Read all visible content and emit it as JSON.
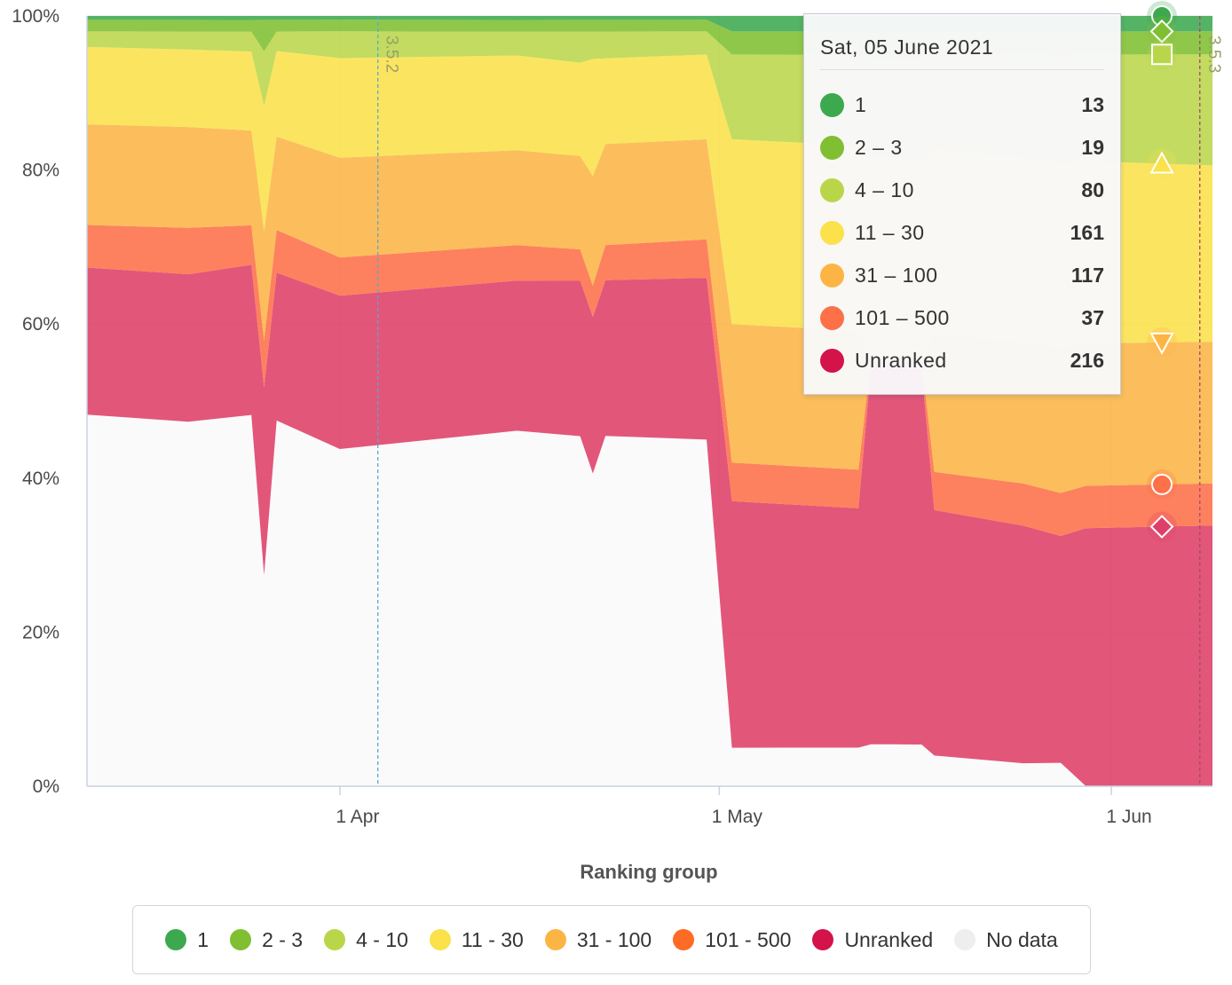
{
  "chart_data": {
    "type": "area",
    "stacking": "percent",
    "x_axis": {
      "type": "datetime",
      "title": "Ranking group",
      "range": [
        "2021-03-12",
        "2021-06-09"
      ],
      "tick_labels": [
        {
          "date": "2021-04-01",
          "label": "1 Apr"
        },
        {
          "date": "2021-05-01",
          "label": "1 May"
        },
        {
          "date": "2021-06-01",
          "label": "1 Jun"
        }
      ],
      "plot_lines": [
        {
          "date": "2021-04-04",
          "label": "3.5.2",
          "color": "#5aa9cf"
        },
        {
          "date": "2021-06-08",
          "label": "3.5.3",
          "color": "#a8476f"
        }
      ]
    },
    "y_axis": {
      "range": [
        0,
        100
      ],
      "tick_labels": [
        "0%",
        "20%",
        "40%",
        "60%",
        "80%",
        "100%"
      ]
    },
    "grid": true,
    "legend": {
      "placement": "bottom-center"
    },
    "series": [
      {
        "name": "1",
        "color": "#3ca94e",
        "marker": "circle",
        "points": [
          [
            "2021-03-12",
            0.5
          ],
          [
            "2021-04-01",
            0.5
          ],
          [
            "2021-04-30",
            0.5
          ],
          [
            "2021-05-02",
            2.0
          ],
          [
            "2021-06-09",
            2.0
          ]
        ]
      },
      {
        "name": "2 - 3",
        "color": "#7fbf31",
        "marker": "diamond",
        "points": [
          [
            "2021-03-12",
            1.5
          ],
          [
            "2021-03-25",
            1.5
          ],
          [
            "2021-03-26",
            4
          ],
          [
            "2021-03-27",
            1.5
          ],
          [
            "2021-04-20",
            1.5
          ],
          [
            "2021-04-30",
            1.5
          ],
          [
            "2021-05-02",
            3.0
          ],
          [
            "2021-06-09",
            3.0
          ]
        ]
      },
      {
        "name": "4 - 10",
        "color": "#b9d64a",
        "marker": "square",
        "points": [
          [
            "2021-03-12",
            2.0
          ],
          [
            "2021-03-25",
            2.5
          ],
          [
            "2021-03-26",
            7
          ],
          [
            "2021-03-27",
            2.5
          ],
          [
            "2021-04-01",
            3.5
          ],
          [
            "2021-04-15",
            3.0
          ],
          [
            "2021-04-20",
            4
          ],
          [
            "2021-04-21",
            3.5
          ],
          [
            "2021-04-30",
            3.0
          ],
          [
            "2021-05-02",
            11
          ],
          [
            "2021-05-15",
            12
          ],
          [
            "2021-05-25",
            13.5
          ],
          [
            "2021-06-09",
            14.5
          ]
        ]
      },
      {
        "name": "11 - 30",
        "color": "#fbe14a",
        "marker": "triangle",
        "points": [
          [
            "2021-03-12",
            10
          ],
          [
            "2021-03-20",
            10
          ],
          [
            "2021-03-25",
            10
          ],
          [
            "2021-03-26",
            16
          ],
          [
            "2021-03-27",
            11
          ],
          [
            "2021-04-01",
            13
          ],
          [
            "2021-04-15",
            12
          ],
          [
            "2021-04-20",
            12
          ],
          [
            "2021-04-21",
            15
          ],
          [
            "2021-04-22",
            11
          ],
          [
            "2021-04-30",
            11
          ],
          [
            "2021-05-02",
            24
          ],
          [
            "2021-05-15",
            24
          ],
          [
            "2021-05-25",
            24
          ],
          [
            "2021-06-09",
            23
          ]
        ]
      },
      {
        "name": "31 - 100",
        "color": "#fcb545",
        "marker": "triangle-down",
        "points": [
          [
            "2021-03-12",
            13
          ],
          [
            "2021-03-20",
            13
          ],
          [
            "2021-03-25",
            12
          ],
          [
            "2021-03-26",
            14
          ],
          [
            "2021-03-27",
            12
          ],
          [
            "2021-04-01",
            13
          ],
          [
            "2021-04-15",
            12
          ],
          [
            "2021-04-20",
            12
          ],
          [
            "2021-04-21",
            14
          ],
          [
            "2021-04-22",
            13
          ],
          [
            "2021-04-30",
            13
          ],
          [
            "2021-05-02",
            18
          ],
          [
            "2021-05-12",
            18
          ],
          [
            "2021-05-13",
            0
          ],
          [
            "2021-05-17",
            0
          ],
          [
            "2021-05-18",
            18
          ],
          [
            "2021-05-25",
            18.5
          ],
          [
            "2021-06-09",
            18.5
          ]
        ]
      },
      {
        "name": "101 - 500",
        "color": "#fd7048",
        "marker": "circle",
        "points": [
          [
            "2021-03-12",
            5.5
          ],
          [
            "2021-03-20",
            6
          ],
          [
            "2021-03-25",
            5
          ],
          [
            "2021-03-26",
            6
          ],
          [
            "2021-03-27",
            5.5
          ],
          [
            "2021-04-01",
            5
          ],
          [
            "2021-04-15",
            4.5
          ],
          [
            "2021-04-20",
            4
          ],
          [
            "2021-04-21",
            4
          ],
          [
            "2021-04-22",
            4.5
          ],
          [
            "2021-04-30",
            5
          ],
          [
            "2021-05-02",
            5
          ],
          [
            "2021-05-12",
            5
          ],
          [
            "2021-05-13",
            1
          ],
          [
            "2021-05-17",
            1
          ],
          [
            "2021-05-18",
            5
          ],
          [
            "2021-05-25",
            5.5
          ],
          [
            "2021-06-09",
            5.5
          ]
        ]
      },
      {
        "name": "Unranked",
        "color": "#de3f68",
        "marker": "diamond",
        "points": [
          [
            "2021-03-12",
            19
          ],
          [
            "2021-03-20",
            19
          ],
          [
            "2021-03-25",
            19
          ],
          [
            "2021-03-26",
            24
          ],
          [
            "2021-03-27",
            19
          ],
          [
            "2021-04-01",
            20
          ],
          [
            "2021-04-15",
            19
          ],
          [
            "2021-04-20",
            20
          ],
          [
            "2021-04-21",
            20
          ],
          [
            "2021-04-22",
            20
          ],
          [
            "2021-04-30",
            21
          ],
          [
            "2021-05-02",
            32
          ],
          [
            "2021-05-12",
            31
          ],
          [
            "2021-05-13",
            45
          ],
          [
            "2021-05-17",
            45
          ],
          [
            "2021-05-18",
            32
          ],
          [
            "2021-05-25",
            31
          ],
          [
            "2021-05-28",
            29
          ],
          [
            "2021-05-30",
            33.5
          ],
          [
            "2021-06-09",
            34
          ]
        ]
      },
      {
        "name": "No data",
        "color": "#efefef",
        "marker": "none",
        "points": [
          [
            "2021-03-12",
            48
          ],
          [
            "2021-03-20",
            47
          ],
          [
            "2021-03-25",
            47
          ],
          [
            "2021-03-26",
            27
          ],
          [
            "2021-03-27",
            47
          ],
          [
            "2021-04-01",
            44
          ],
          [
            "2021-04-15",
            45
          ],
          [
            "2021-04-20",
            45
          ],
          [
            "2021-04-21",
            40
          ],
          [
            "2021-04-22",
            45
          ],
          [
            "2021-04-30",
            45
          ],
          [
            "2021-05-02",
            5
          ],
          [
            "2021-05-12",
            5
          ],
          [
            "2021-05-13",
            5
          ],
          [
            "2021-05-17",
            5
          ],
          [
            "2021-05-18",
            4
          ],
          [
            "2021-05-25",
            3
          ],
          [
            "2021-05-28",
            3
          ],
          [
            "2021-05-30",
            0
          ],
          [
            "2021-06-09",
            0
          ]
        ]
      }
    ],
    "tooltip": {
      "date": "Sat, 05 June 2021",
      "rows": [
        {
          "name": "1",
          "value": "13",
          "color": "#3ca94e"
        },
        {
          "name": "2 – 3",
          "value": "19",
          "color": "#7fbf31"
        },
        {
          "name": "4 – 10",
          "value": "80",
          "color": "#b9d64a"
        },
        {
          "name": "11 – 30",
          "value": "161",
          "color": "#fbe14a"
        },
        {
          "name": "31 – 100",
          "value": "117",
          "color": "#fcb545"
        },
        {
          "name": "101 – 500",
          "value": "37",
          "color": "#fd7048"
        },
        {
          "name": "Unranked",
          "value": "216",
          "color": "#d3134a"
        }
      ]
    },
    "legend_items": [
      {
        "name": "1",
        "color": "#3ca94e"
      },
      {
        "name": "2 - 3",
        "color": "#7fbf31"
      },
      {
        "name": "4 - 10",
        "color": "#b9d64a"
      },
      {
        "name": "11 - 30",
        "color": "#fbe14a"
      },
      {
        "name": "31 - 100",
        "color": "#fcb545"
      },
      {
        "name": "101 - 500",
        "color": "#fd6b24"
      },
      {
        "name": "Unranked",
        "color": "#d3134a"
      },
      {
        "name": "No data",
        "color": "#eeeeee"
      }
    ]
  }
}
